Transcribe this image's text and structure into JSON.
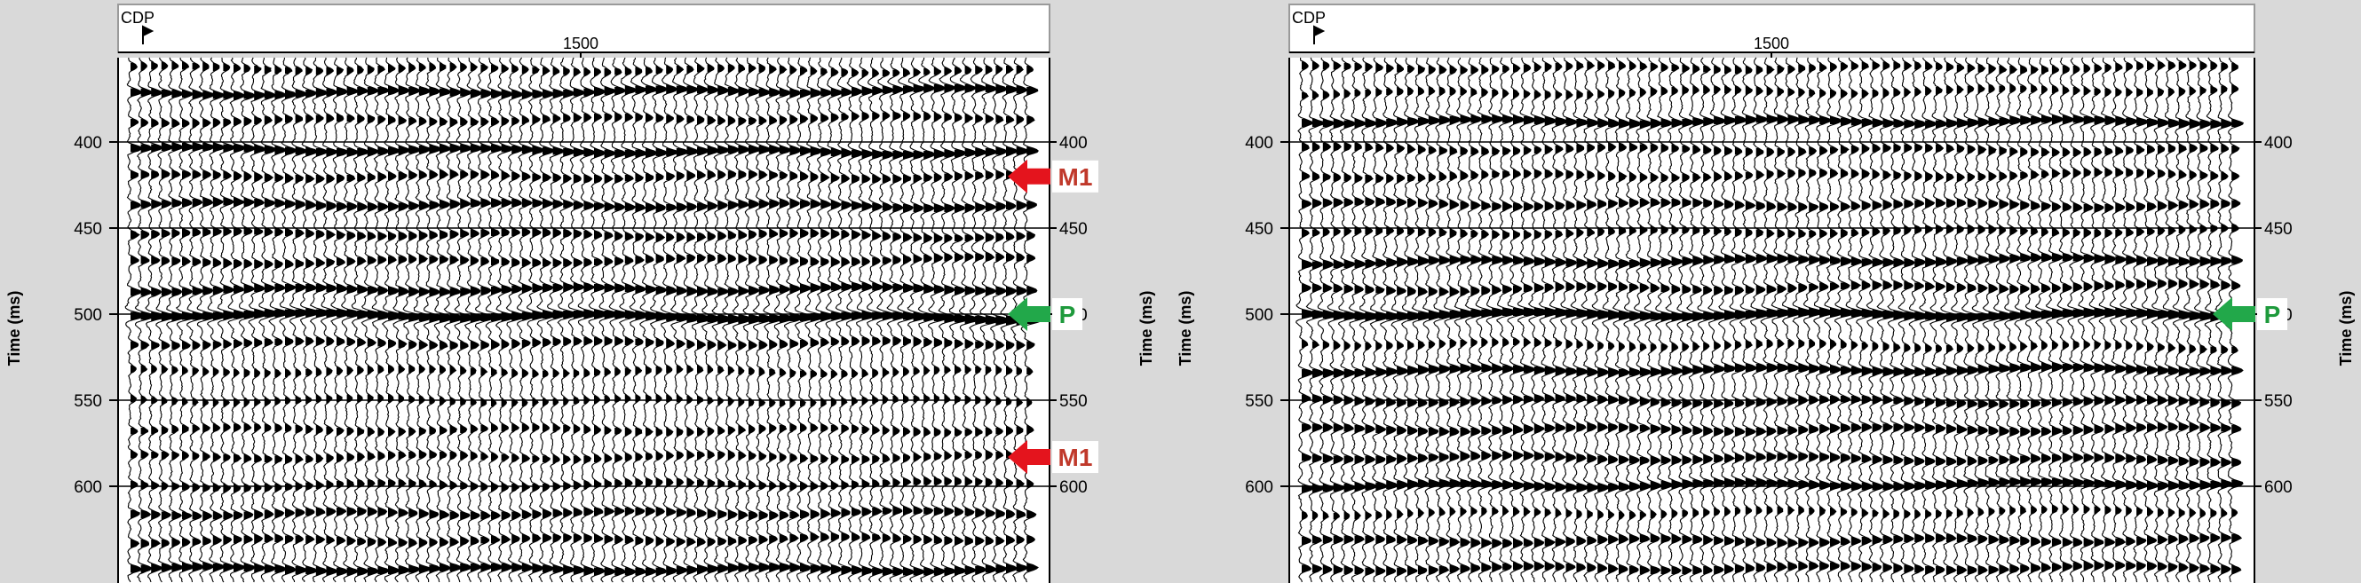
{
  "colors": {
    "frame_bg": "#d9d9d9",
    "panel_bg": "#ffffff",
    "trace": "#000000",
    "marker_multiple": "#e4141d",
    "marker_multiple_text": "#c0392b",
    "marker_primary": "#22a84a",
    "marker_primary_text": "#1e9a3c",
    "label_box": "#ffffff"
  },
  "panels": [
    {
      "id": "left",
      "header_label": "CDP",
      "header_tick": "1500",
      "y_axis_label": "Time (ms)",
      "y_ticks": [
        "400",
        "450",
        "500",
        "550",
        "600"
      ],
      "markers": [
        {
          "type": "multiple",
          "label": "M1",
          "time_ms": 420
        },
        {
          "type": "primary",
          "label": "P",
          "time_ms": 500
        },
        {
          "type": "multiple",
          "label": "M1",
          "time_ms": 583
        }
      ]
    },
    {
      "id": "right",
      "header_label": "CDP",
      "header_tick": "1500",
      "y_axis_label": "Time (ms)",
      "y_ticks": [
        "400",
        "450",
        "500",
        "550",
        "600"
      ],
      "markers": [
        {
          "type": "primary",
          "label": "P",
          "time_ms": 500
        }
      ]
    }
  ],
  "chart_data": [
    {
      "type": "seismic-wiggle",
      "title": "",
      "xlabel": "CDP",
      "ylabel": "Time (ms)",
      "x_ticks": [
        "1500"
      ],
      "y_ticks": [
        400,
        450,
        500,
        550,
        600
      ],
      "ylim": [
        350,
        650
      ],
      "grid": "horizontal",
      "annotations": [
        {
          "label": "M1",
          "time_ms": 420
        },
        {
          "label": "P",
          "time_ms": 500
        },
        {
          "label": "M1",
          "time_ms": 583
        }
      ],
      "reflectors_ms": [
        357,
        372,
        388,
        404,
        420,
        436,
        453,
        470,
        486,
        500,
        517,
        533,
        550,
        567,
        583,
        600,
        616,
        632,
        648
      ]
    },
    {
      "type": "seismic-wiggle",
      "title": "",
      "xlabel": "CDP",
      "ylabel": "Time (ms)",
      "x_ticks": [
        "1500"
      ],
      "y_ticks": [
        400,
        450,
        500,
        550,
        600
      ],
      "ylim": [
        350,
        650
      ],
      "grid": "horizontal",
      "annotations": [
        {
          "label": "P",
          "time_ms": 500
        }
      ],
      "reflectors_ms": [
        357,
        372,
        388,
        404,
        420,
        436,
        453,
        470,
        486,
        500,
        517,
        533,
        550,
        567,
        583,
        600,
        616,
        632,
        648
      ]
    }
  ]
}
